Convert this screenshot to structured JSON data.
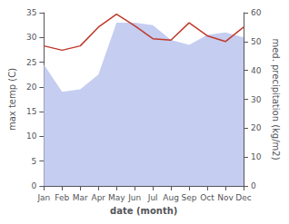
{
  "chart_data": {
    "type": "line",
    "categories": [
      "Jan",
      "Feb",
      "Mar",
      "Apr",
      "May",
      "Jun",
      "Jul",
      "Aug",
      "Sep",
      "Oct",
      "Nov",
      "Dec"
    ],
    "series": [
      {
        "type": "area",
        "color": "#c5cdf0",
        "values": [
          24.5,
          19.0,
          19.5,
          22.5,
          33.0,
          33.0,
          32.5,
          29.5,
          28.5,
          30.5,
          31.0,
          30.0
        ]
      },
      {
        "type": "line",
        "color": "#c0392b",
        "axis": "y2",
        "values": [
          48.5,
          47.0,
          48.5,
          55.0,
          59.5,
          55.5,
          51.0,
          50.5,
          56.5,
          52.0,
          50.0,
          55.0
        ]
      }
    ],
    "xlabel": "date (month)",
    "ylabel": "max temp (C)",
    "y2label": "med. precipitation (kg/m2)",
    "ylim": [
      0,
      35
    ],
    "yticks": [
      0,
      5,
      10,
      15,
      20,
      25,
      30,
      35
    ],
    "y2lim": [
      0,
      60
    ],
    "y2ticks": [
      0,
      10,
      20,
      30,
      40,
      50,
      60
    ],
    "grid": false
  }
}
